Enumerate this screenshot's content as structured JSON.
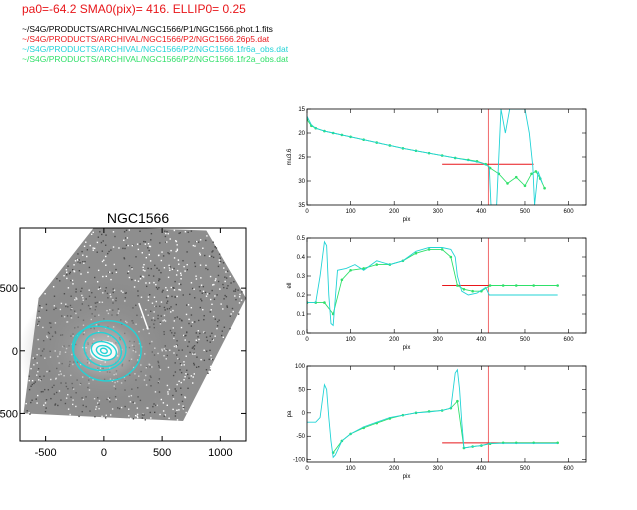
{
  "header": {
    "params": "pa0=-64.2  SMA0(pix)= 416.  ELLIP0= 0.25",
    "files": [
      {
        "text": "~/S4G/PRODUCTS/ARCHIVAL/NGC1566/P1/NGC1566.phot.1.fits",
        "color": "#000000"
      },
      {
        "text": "~/S4G/PRODUCTS/ARCHIVAL/NGC1566/P2/NGC1566.26p5.dat",
        "color": "#e8161a"
      },
      {
        "text": "~/S4G/PRODUCTS/ARCHIVAL/NGC1566/P2/NGC1566.1fr6a_obs.dat",
        "color": "#22d3d6"
      },
      {
        "text": "~/S4G/PRODUCTS/ARCHIVAL/NGC1566/P2/NGC1566.1fr2a_obs.dat",
        "color": "#2fe06a"
      }
    ]
  },
  "colors": {
    "red": "#e8161a",
    "cyan": "#22d3d6",
    "green": "#2fe06a"
  },
  "chart_data": [
    {
      "type": "image",
      "title": "NGC1566",
      "xlabel": "",
      "ylabel": "",
      "xlim": [
        -720,
        1220
      ],
      "ylim": [
        -720,
        980
      ],
      "xticks": [
        -500,
        0,
        500,
        1000
      ],
      "yticks": [
        -500,
        0,
        500
      ],
      "ytick_labels": [
        "500",
        "0",
        "500"
      ],
      "ellipses": [
        {
          "cx": 0,
          "cy": 0,
          "a": 65,
          "b": 40,
          "pa": 75
        },
        {
          "cx": 0,
          "cy": 0,
          "a": 110,
          "b": 70,
          "pa": 72
        },
        {
          "cx": -10,
          "cy": 10,
          "a": 165,
          "b": 130,
          "pa": 62
        },
        {
          "cx": -40,
          "cy": 20,
          "a": 230,
          "b": 175,
          "pa": 80
        },
        {
          "cx": 30,
          "cy": 0,
          "a": 290,
          "b": 240,
          "pa": 95
        },
        {
          "cx": 0,
          "cy": 0,
          "a": 30,
          "b": 20,
          "pa": 70
        }
      ]
    },
    {
      "type": "scatter",
      "xlabel": "pix",
      "ylabel": "mu3.6",
      "xlim": [
        0,
        640
      ],
      "ylim": [
        35,
        15
      ],
      "xticks": [
        0,
        100,
        200,
        300,
        400,
        500,
        600
      ],
      "yticks": [
        15,
        20,
        25,
        30,
        35
      ],
      "vline": 416,
      "hline": {
        "x": [
          310,
          520
        ],
        "y": 26.5
      },
      "series": [
        {
          "color": "#2fe06a",
          "x": [
            0,
            10,
            20,
            40,
            60,
            80,
            100,
            130,
            160,
            190,
            220,
            250,
            280,
            310,
            340,
            370,
            390,
            410,
            420,
            440,
            460,
            480,
            500,
            515,
            525,
            535,
            545
          ],
          "y": [
            17.2,
            18.5,
            19.0,
            19.6,
            20.0,
            20.4,
            20.8,
            21.4,
            22.0,
            22.6,
            23.2,
            23.7,
            24.2,
            24.7,
            25.2,
            25.6,
            25.9,
            26.5,
            27.3,
            28.5,
            30.5,
            29.2,
            31.0,
            28.5,
            28.0,
            29.5,
            31.5
          ]
        },
        {
          "color": "#22d3d6",
          "x": [
            0,
            10,
            20,
            40,
            60,
            80,
            100,
            130,
            160,
            190,
            220,
            250,
            280,
            310,
            340,
            370,
            400,
            418,
            422,
            435,
            445,
            455,
            465,
            500,
            510,
            518,
            522,
            530,
            540
          ],
          "y": [
            16.5,
            18.3,
            19.0,
            19.6,
            20.0,
            20.4,
            20.8,
            21.4,
            22.0,
            22.6,
            23.2,
            23.7,
            24.2,
            24.7,
            25.2,
            25.7,
            26.2,
            27.0,
            35.0,
            35.0,
            15.0,
            20.0,
            15.0,
            15.0,
            20.0,
            27.0,
            35.0,
            28.0,
            30.5
          ]
        }
      ]
    },
    {
      "type": "scatter",
      "xlabel": "pix",
      "ylabel": "ell",
      "xlim": [
        0,
        640
      ],
      "ylim": [
        0,
        0.5
      ],
      "xticks": [
        0,
        100,
        200,
        300,
        400,
        500,
        600
      ],
      "yticks": [
        0.0,
        0.1,
        0.2,
        0.3,
        0.4,
        0.5
      ],
      "ytick_labels": [
        "0.0",
        "0.1",
        "0.2",
        "0.3",
        "0.4",
        "0.5"
      ],
      "vline": 416,
      "hline": {
        "x": [
          310,
          575
        ],
        "y": 0.25
      },
      "series": [
        {
          "color": "#2fe06a",
          "x": [
            0,
            20,
            40,
            60,
            80,
            100,
            130,
            160,
            190,
            220,
            250,
            280,
            310,
            330,
            345,
            360,
            380,
            400,
            420,
            450,
            480,
            520,
            575
          ],
          "y": [
            0.16,
            0.16,
            0.16,
            0.1,
            0.28,
            0.33,
            0.34,
            0.36,
            0.36,
            0.38,
            0.42,
            0.44,
            0.44,
            0.4,
            0.25,
            0.23,
            0.22,
            0.22,
            0.25,
            0.25,
            0.25,
            0.25,
            0.25
          ]
        },
        {
          "color": "#22d3d6",
          "x": [
            0,
            20,
            30,
            40,
            45,
            50,
            55,
            60,
            70,
            90,
            110,
            130,
            160,
            190,
            220,
            250,
            280,
            310,
            330,
            340,
            345,
            355,
            370,
            390,
            410,
            418,
            440,
            480,
            520,
            575
          ],
          "y": [
            0.16,
            0.16,
            0.3,
            0.48,
            0.46,
            0.2,
            0.05,
            0.04,
            0.33,
            0.34,
            0.36,
            0.33,
            0.38,
            0.36,
            0.38,
            0.43,
            0.45,
            0.45,
            0.44,
            0.4,
            0.3,
            0.22,
            0.2,
            0.21,
            0.24,
            0.2,
            0.2,
            0.2,
            0.2,
            0.2
          ]
        }
      ]
    },
    {
      "type": "scatter",
      "xlabel": "pix",
      "ylabel": "pa",
      "xlim": [
        0,
        640
      ],
      "ylim": [
        -105,
        100
      ],
      "xticks": [
        0,
        100,
        200,
        300,
        400,
        500,
        600
      ],
      "yticks": [
        -100,
        -50,
        0,
        50,
        100
      ],
      "vline": 416,
      "hline": {
        "x": [
          310,
          575
        ],
        "y": -64.2
      },
      "series": [
        {
          "color": "#2fe06a",
          "x": [
            60,
            80,
            100,
            130,
            160,
            190,
            220,
            250,
            280,
            310,
            330,
            345,
            360,
            380,
            400,
            420,
            450,
            480,
            520,
            575
          ],
          "y": [
            -85,
            -60,
            -45,
            -32,
            -22,
            -12,
            -5,
            0,
            3,
            5,
            10,
            25,
            -75,
            -72,
            -70,
            -66,
            -64,
            -64,
            -64,
            -64
          ]
        },
        {
          "color": "#22d3d6",
          "x": [
            0,
            10,
            20,
            30,
            40,
            45,
            50,
            55,
            60,
            65,
            80,
            100,
            130,
            160,
            190,
            220,
            250,
            280,
            310,
            330,
            340,
            345,
            350,
            355,
            360,
            380,
            400,
            420,
            450,
            480,
            520,
            575
          ],
          "y": [
            -20,
            -20,
            -20,
            -10,
            60,
            50,
            -10,
            -60,
            -95,
            -90,
            -60,
            -45,
            -30,
            -20,
            -10,
            -5,
            0,
            2,
            5,
            10,
            85,
            92,
            50,
            -20,
            -75,
            -72,
            -70,
            -65,
            -65,
            -65,
            -65,
            -65
          ]
        }
      ]
    }
  ]
}
